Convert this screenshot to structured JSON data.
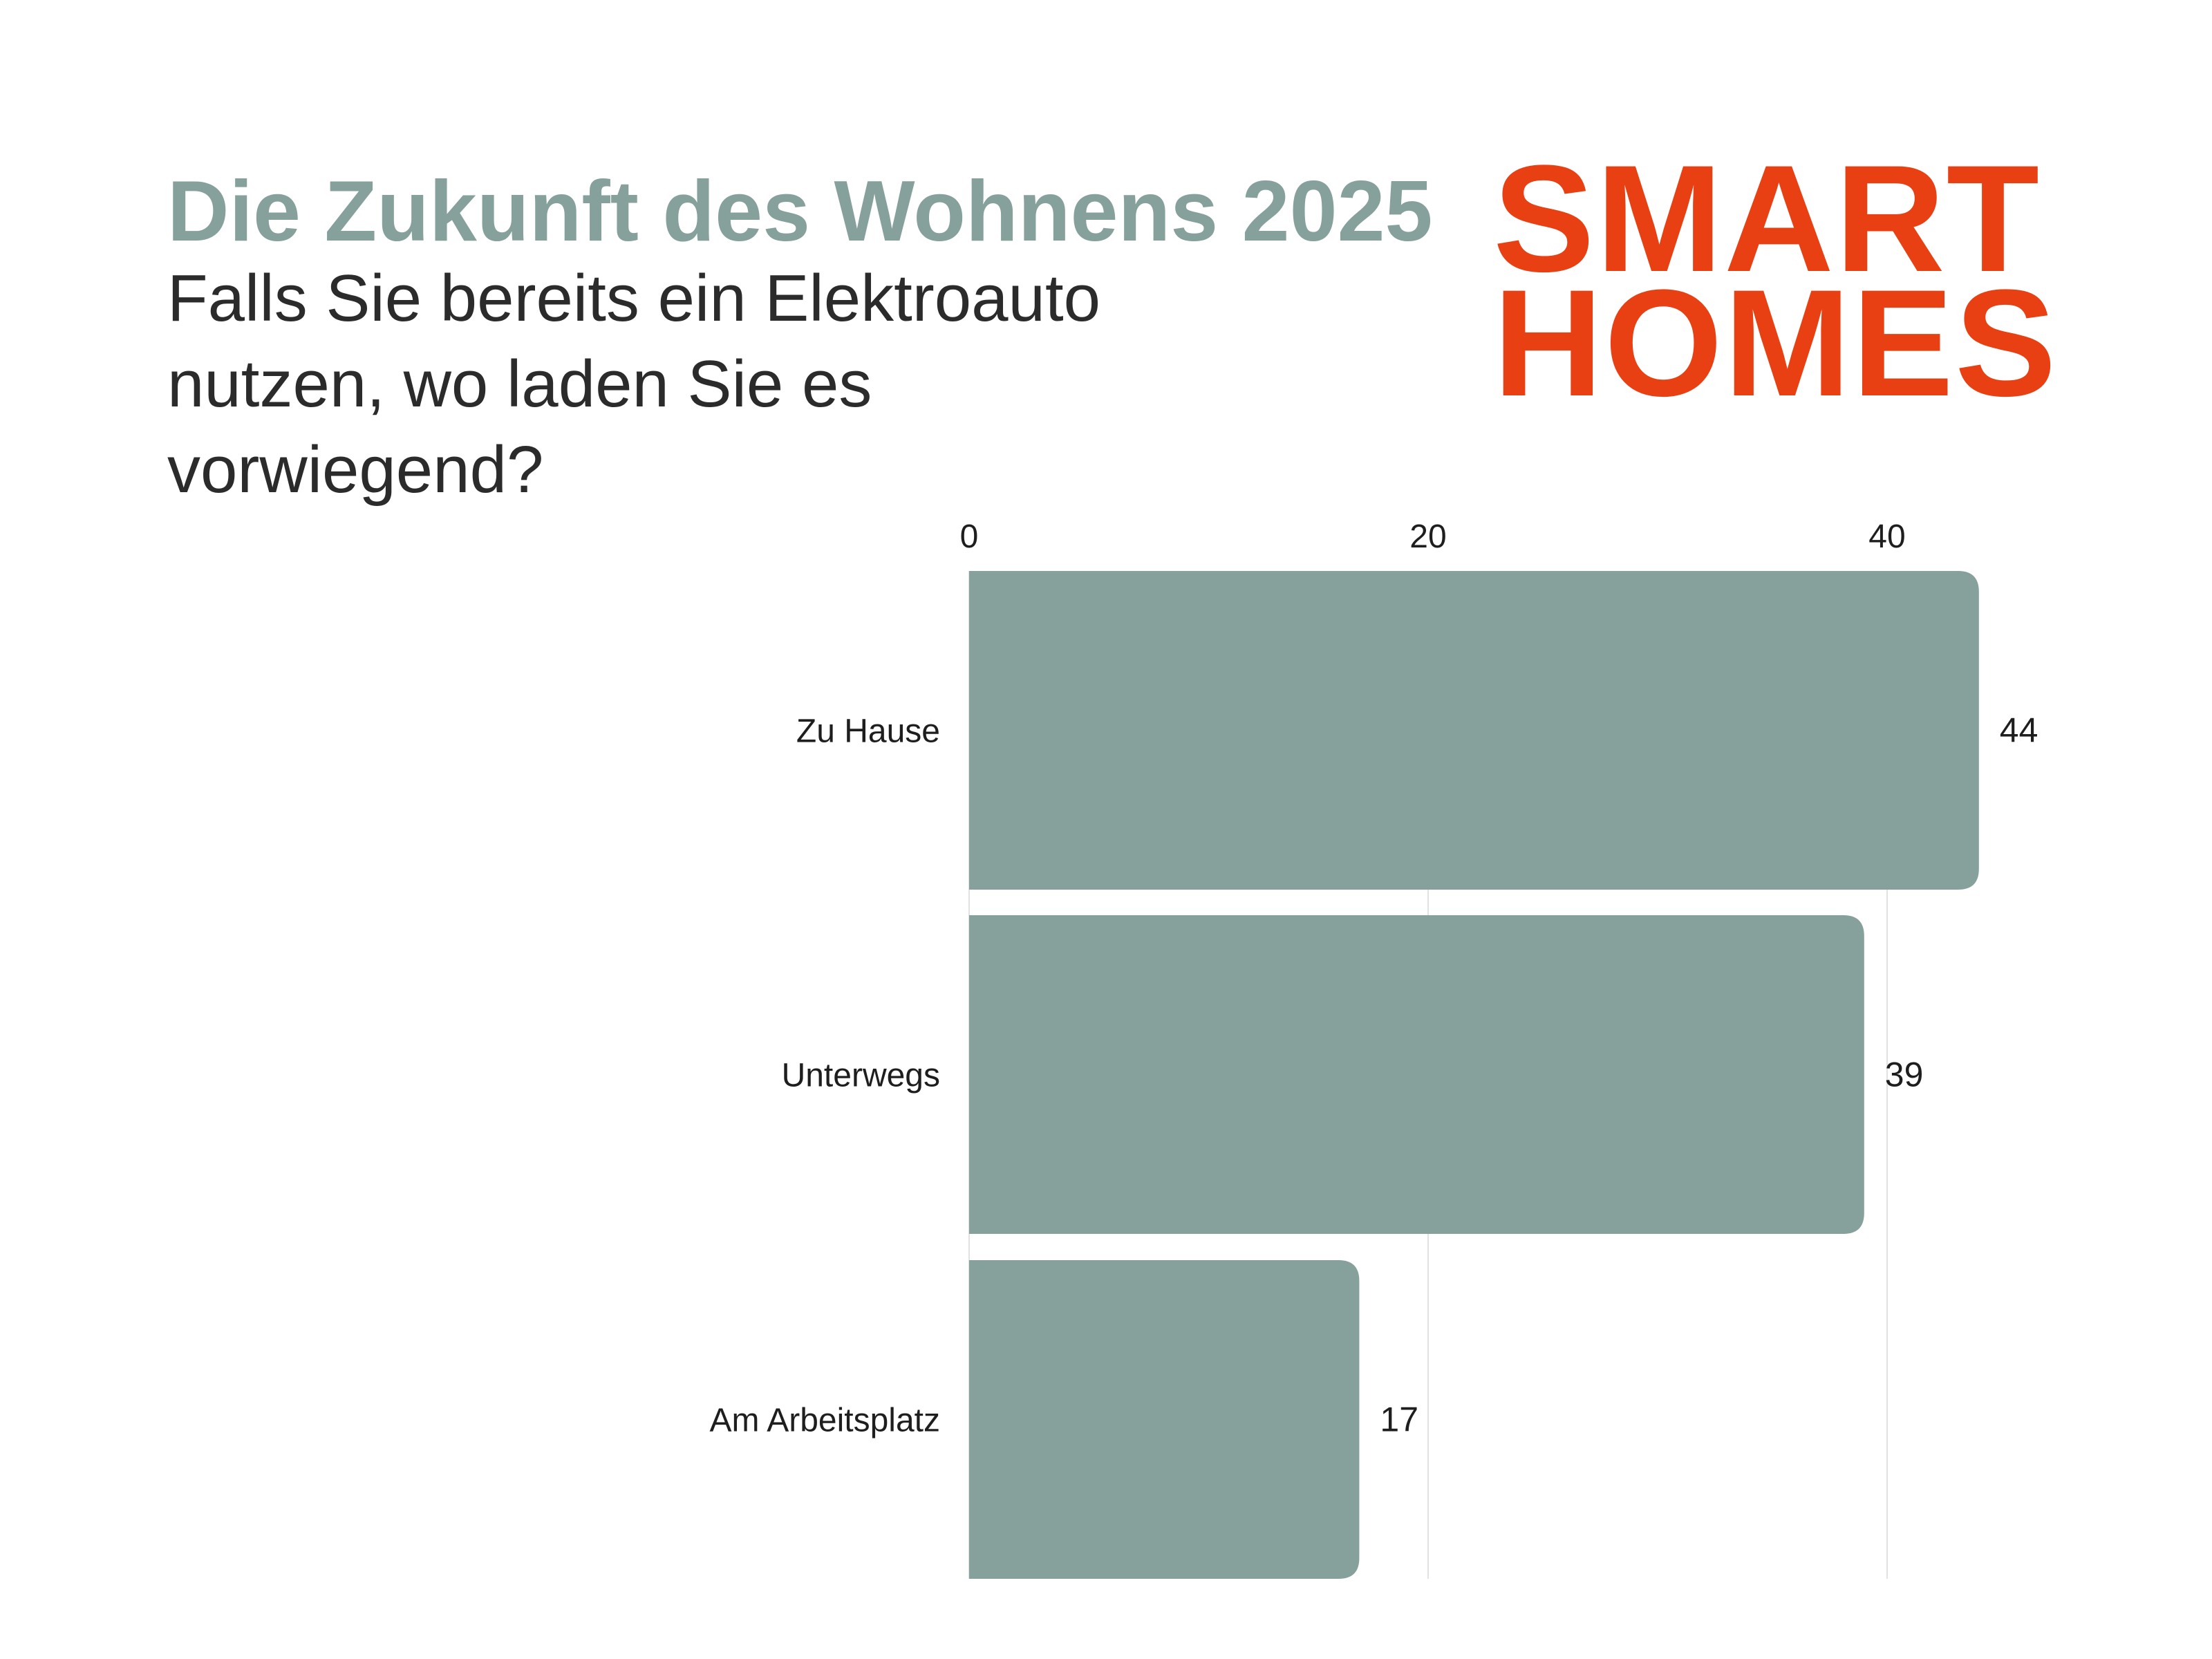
{
  "header": {
    "title": "Die Zukunft des Wohnens 2025",
    "subtitle": "Falls Sie bereits ein Elektroauto nutzen, wo laden Sie es vorwiegend?"
  },
  "logo": {
    "line1": "SMART",
    "line2": "HOMES"
  },
  "colors": {
    "title": "#86a09b",
    "bar": "#86a09b",
    "logo": "#e84012",
    "text": "#1e1e1e",
    "grid": "#e2e2e2"
  },
  "chart_data": {
    "type": "bar",
    "orientation": "horizontal",
    "categories": [
      "Zu Hause",
      "Unterwegs",
      "Am Arbeitsplatz"
    ],
    "values": [
      44,
      39,
      17
    ],
    "xticks": [
      0,
      20,
      40
    ],
    "xlim": [
      0,
      44
    ],
    "axis_position": "top",
    "grid": true
  }
}
